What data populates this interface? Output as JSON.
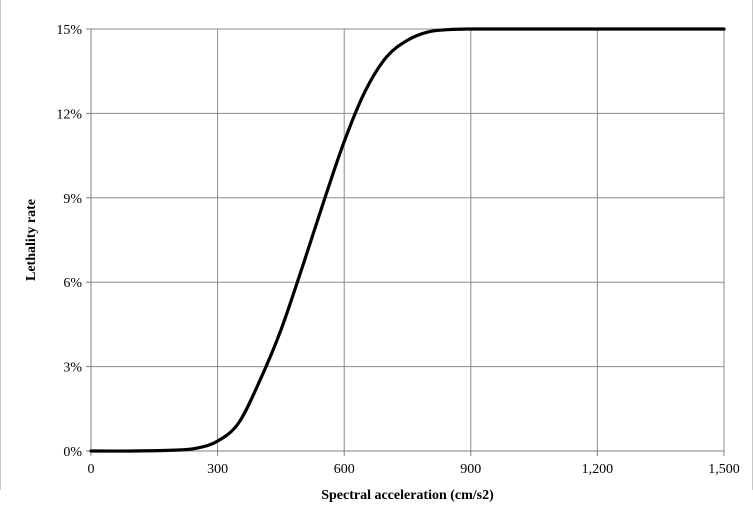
{
  "chart_data": {
    "type": "line",
    "title": "",
    "xlabel": "Spectral acceleration (cm/s2)",
    "ylabel": "Lethality rate",
    "xlim": [
      0,
      1500
    ],
    "ylim": [
      0,
      15
    ],
    "x_ticks": [
      0,
      300,
      600,
      900,
      1200,
      1500
    ],
    "x_tick_labels": [
      "0",
      "300",
      "600",
      "900",
      "1,200",
      "1,500"
    ],
    "y_ticks": [
      0,
      3,
      6,
      9,
      12,
      15
    ],
    "y_tick_labels": [
      "0%",
      "3%",
      "6%",
      "9%",
      "12%",
      "15%"
    ],
    "grid": true,
    "legend": "none",
    "series": [
      {
        "color": "#000000",
        "x": [
          0,
          100,
          200,
          250,
          300,
          350,
          400,
          450,
          500,
          550,
          600,
          650,
          700,
          750,
          800,
          850,
          900,
          1000,
          1100,
          1200,
          1300,
          1400,
          1500
        ],
        "y": [
          0,
          0,
          0.03,
          0.1,
          0.35,
          1.0,
          2.5,
          4.3,
          6.5,
          8.8,
          11.0,
          12.8,
          14.0,
          14.6,
          14.9,
          14.98,
          15.0,
          15.0,
          15.0,
          15.0,
          15.0,
          15.0,
          15.0
        ]
      }
    ]
  }
}
